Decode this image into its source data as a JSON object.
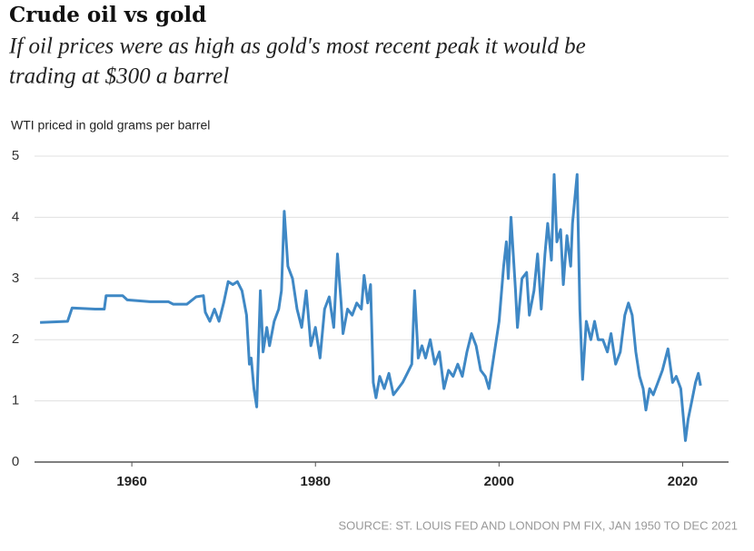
{
  "chart_data": {
    "type": "line",
    "title": "Crude oil vs gold",
    "subtitle": [
      "If oil prices were as high as gold's most recent peak it would be",
      "trading at $300 a barrel"
    ],
    "y_label": "WTI priced in gold grams per barrel",
    "source": "SOURCE: ST. LOUIS FED AND LONDON PM FIX, JAN 1950 TO DEC 2021",
    "xlim": [
      1949.4,
      2025
    ],
    "xticks": [
      1960,
      1980,
      2000,
      2020
    ],
    "ylim": [
      0,
      5
    ],
    "yticks": [
      0,
      1,
      2,
      3,
      4,
      5
    ],
    "grid": true,
    "series": [
      {
        "name": "WTI in gold grams",
        "color": "#3f88c5",
        "x": [
          1950,
          1953,
          1953.5,
          1956,
          1957,
          1957.2,
          1959,
          1959.5,
          1962,
          1964,
          1964.5,
          1966,
          1967,
          1967.8,
          1968,
          1968.5,
          1969,
          1969.5,
          1970,
          1970.5,
          1971,
          1971.5,
          1972,
          1972.5,
          1972.8,
          1973,
          1973.3,
          1973.6,
          1974,
          1974.3,
          1974.7,
          1975,
          1975.5,
          1976,
          1976.3,
          1976.6,
          1977,
          1977.5,
          1978,
          1978.5,
          1979,
          1979.5,
          1980,
          1980.5,
          1981,
          1981.5,
          1982,
          1982.4,
          1982.8,
          1983,
          1983.5,
          1984,
          1984.5,
          1985,
          1985.3,
          1985.7,
          1986,
          1986.3,
          1986.6,
          1987,
          1987.5,
          1988,
          1988.5,
          1989,
          1989.5,
          1990,
          1990.5,
          1990.8,
          1991.2,
          1991.6,
          1992,
          1992.5,
          1993,
          1993.5,
          1994,
          1994.5,
          1995,
          1995.5,
          1996,
          1996.5,
          1997,
          1997.5,
          1998,
          1998.5,
          1998.9,
          1999.5,
          2000,
          2000.5,
          2000.8,
          2001,
          2001.3,
          2001.8,
          2002,
          2002.5,
          2003,
          2003.3,
          2003.8,
          2004.2,
          2004.6,
          2005,
          2005.3,
          2005.7,
          2006,
          2006.3,
          2006.7,
          2007,
          2007.4,
          2007.8,
          2008,
          2008.5,
          2008.8,
          2009.1,
          2009.5,
          2010,
          2010.4,
          2010.8,
          2011.3,
          2011.8,
          2012.2,
          2012.7,
          2013.2,
          2013.7,
          2014.1,
          2014.5,
          2014.9,
          2015.3,
          2015.7,
          2016,
          2016.4,
          2016.8,
          2017.3,
          2017.8,
          2018.4,
          2018.9,
          2019.3,
          2019.8,
          2020.3,
          2020.6,
          2021,
          2021.4,
          2021.7,
          2021.95
        ],
        "values": [
          2.28,
          2.3,
          2.52,
          2.5,
          2.5,
          2.72,
          2.72,
          2.65,
          2.62,
          2.62,
          2.58,
          2.58,
          2.7,
          2.72,
          2.45,
          2.3,
          2.5,
          2.3,
          2.6,
          2.95,
          2.9,
          2.95,
          2.8,
          2.4,
          1.6,
          1.7,
          1.2,
          0.9,
          2.8,
          1.8,
          2.2,
          1.9,
          2.3,
          2.5,
          2.8,
          4.1,
          3.2,
          3.0,
          2.5,
          2.2,
          2.8,
          1.9,
          2.2,
          1.7,
          2.5,
          2.7,
          2.2,
          3.4,
          2.6,
          2.1,
          2.5,
          2.4,
          2.6,
          2.5,
          3.05,
          2.6,
          2.9,
          1.3,
          1.05,
          1.4,
          1.2,
          1.45,
          1.1,
          1.2,
          1.3,
          1.45,
          1.6,
          2.8,
          1.7,
          1.9,
          1.7,
          2.0,
          1.6,
          1.8,
          1.2,
          1.5,
          1.4,
          1.6,
          1.4,
          1.8,
          2.1,
          1.9,
          1.5,
          1.4,
          1.2,
          1.8,
          2.3,
          3.2,
          3.6,
          3.0,
          4.0,
          2.8,
          2.2,
          3.0,
          3.1,
          2.4,
          2.8,
          3.4,
          2.5,
          3.4,
          3.9,
          3.3,
          4.7,
          3.6,
          3.8,
          2.9,
          3.7,
          3.2,
          3.9,
          4.7,
          2.5,
          1.35,
          2.3,
          2.0,
          2.3,
          2.0,
          2.0,
          1.8,
          2.1,
          1.6,
          1.8,
          2.4,
          2.6,
          2.4,
          1.8,
          1.4,
          1.2,
          0.85,
          1.2,
          1.1,
          1.3,
          1.5,
          1.85,
          1.3,
          1.4,
          1.2,
          0.35,
          0.7,
          1.0,
          1.3,
          1.45,
          1.25
        ]
      }
    ]
  }
}
